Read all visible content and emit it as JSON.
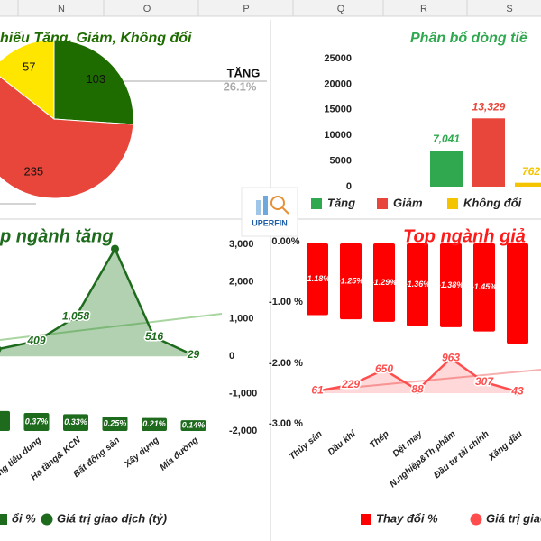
{
  "spreadsheet": {
    "columns": [
      "N",
      "O",
      "P",
      "Q",
      "R",
      "S"
    ]
  },
  "logo": {
    "text": "UPERFIN"
  },
  "chart_data": [
    {
      "type": "pie",
      "title": "hiếu Tăng, Giảm, Không đổi",
      "values": [
        103,
        235,
        57
      ],
      "colors": [
        "#1e6b00",
        "#e8463a",
        "#ffe600"
      ],
      "callout": {
        "label": "TĂNG",
        "value_label": "26.1%"
      }
    },
    {
      "type": "bar",
      "title": "Phân bổ dòng tiề",
      "series": [
        {
          "name": "Tăng",
          "color": "#2fa84f",
          "values": [
            7041
          ],
          "value_labels": [
            "7,041"
          ]
        },
        {
          "name": "Giảm",
          "color": "#e8463a",
          "values": [
            13329
          ],
          "value_labels": [
            "13,329"
          ]
        },
        {
          "name": "Không đổi",
          "color": "#f5c400",
          "values": [
            762
          ],
          "value_labels": [
            "762"
          ]
        }
      ],
      "ylim": [
        0,
        25000
      ],
      "yticks": [
        0,
        5000,
        10000,
        15000,
        20000,
        25000
      ]
    },
    {
      "type": "combo",
      "title": "p ngành tăng",
      "categories": [
        null,
        "ng tiêu dùng",
        "Hạ tầng& KCN",
        "Bất động sản",
        "Xây dựng",
        "Mía đường"
      ],
      "series": [
        {
          "name": "ổi %",
          "color": "#1e6b1e",
          "values": [
            0.43,
            0.37,
            0.33,
            0.25,
            0.21,
            0.14
          ],
          "value_labels": [
            null,
            "0.37%",
            "0.33%",
            "0.25%",
            "0.21%",
            "0.14%"
          ]
        },
        {
          "name": "Giá trị giao dịch (tỷ)",
          "axis": "y2",
          "color": "#1e6b1e",
          "values": [
            190,
            409,
            1058,
            2880,
            516,
            29
          ],
          "value_labels": [
            null,
            "409",
            "1,058",
            null,
            "516",
            "29"
          ]
        }
      ],
      "ylim": [
        -0.2,
        5.7
      ],
      "y2lim": [
        -2000,
        3000
      ],
      "y2ticks": [
        {
          "value": 3000,
          "label": "3,000"
        },
        {
          "value": 2000,
          "label": "2,000"
        },
        {
          "value": 1000,
          "label": "1,000"
        },
        0,
        {
          "value": -1000,
          "label": "-1,000"
        },
        {
          "value": -2000,
          "label": "-2,000"
        }
      ]
    },
    {
      "type": "combo",
      "title": "Top ngành giả",
      "categories": [
        "Thủy sản",
        "Dầu khí",
        "Thép",
        "Dệt may",
        "N.nghiệp&Th.phẩm",
        "Đầu tư tài chính",
        "Xăng dầu"
      ],
      "series": [
        {
          "name": "Thay đổi %",
          "color": "#ff0000",
          "values": [
            -1.18,
            -1.25,
            -1.29,
            -1.36,
            -1.38,
            -1.45,
            -1.65
          ],
          "value_labels": [
            "-1.18%",
            "-1.25%",
            "-1.29%",
            "-1.36%",
            "-1.38%",
            "-1.45%",
            null
          ]
        },
        {
          "name": "Giá trị giao dịch (tỷ)",
          "axis": "y2",
          "color": "#ff4d4d",
          "values": [
            61,
            229,
            650,
            88,
            963,
            307,
            43
          ],
          "value_labels": [
            "61",
            "229",
            "650",
            "88",
            "963",
            "307",
            "43"
          ]
        }
      ],
      "ylim": [
        -3,
        0
      ],
      "yticks": [
        {
          "value": 0,
          "label": "0.00%"
        },
        {
          "value": -1,
          "label": "-1.00 %"
        },
        {
          "value": -2,
          "label": "-2.00 %"
        },
        {
          "value": -3,
          "label": "-3.00 %"
        }
      ],
      "y2lim": [
        -900,
        4150
      ]
    }
  ]
}
